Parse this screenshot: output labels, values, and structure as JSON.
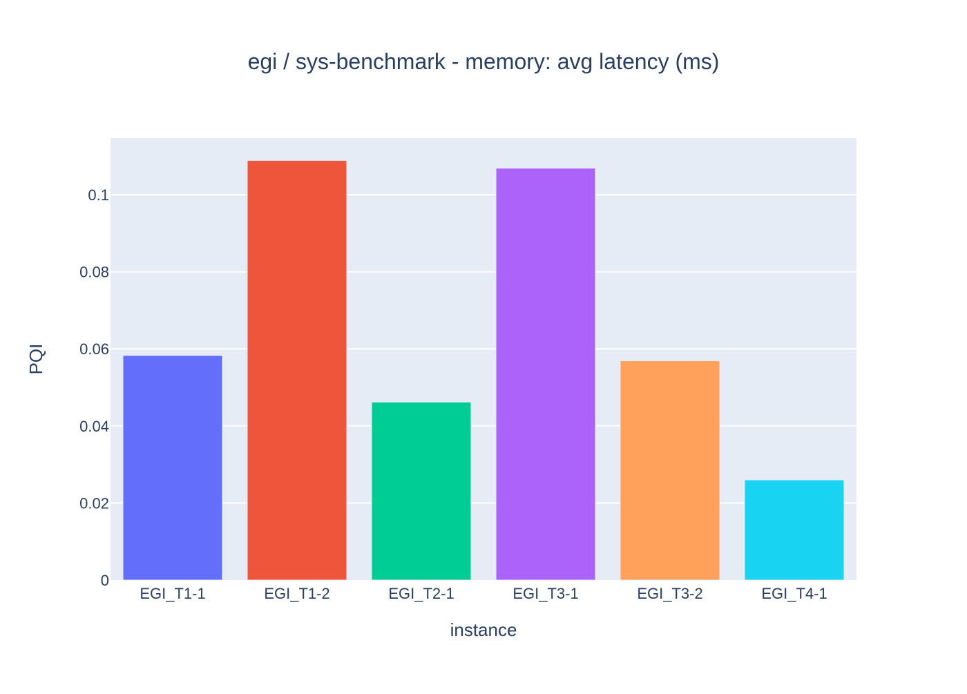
{
  "chart_data": {
    "type": "bar",
    "title": "egi / sys-benchmark - memory: avg latency (ms)",
    "xlabel": "instance",
    "ylabel": "PQI",
    "categories": [
      "EGI_T1-1",
      "EGI_T1-2",
      "EGI_T2-1",
      "EGI_T3-1",
      "EGI_T3-2",
      "EGI_T4-1"
    ],
    "values": [
      0.0583,
      0.1089,
      0.0462,
      0.1069,
      0.0569,
      0.026
    ],
    "colors": [
      "#636efa",
      "#ef553b",
      "#00cc96",
      "#ab63fa",
      "#ffa15a",
      "#19d3f3"
    ],
    "ylim": [
      0,
      0.1147
    ],
    "yticks": [
      0,
      0.02,
      0.04,
      0.06,
      0.08,
      0.1
    ],
    "ytick_labels": [
      "0",
      "0.02",
      "0.04",
      "0.06",
      "0.08",
      "0.1"
    ],
    "grid": true,
    "legend": false,
    "plot_background": "#e5ecf6",
    "grid_color": "#ffffff",
    "text_color": "#2a3f5f"
  }
}
